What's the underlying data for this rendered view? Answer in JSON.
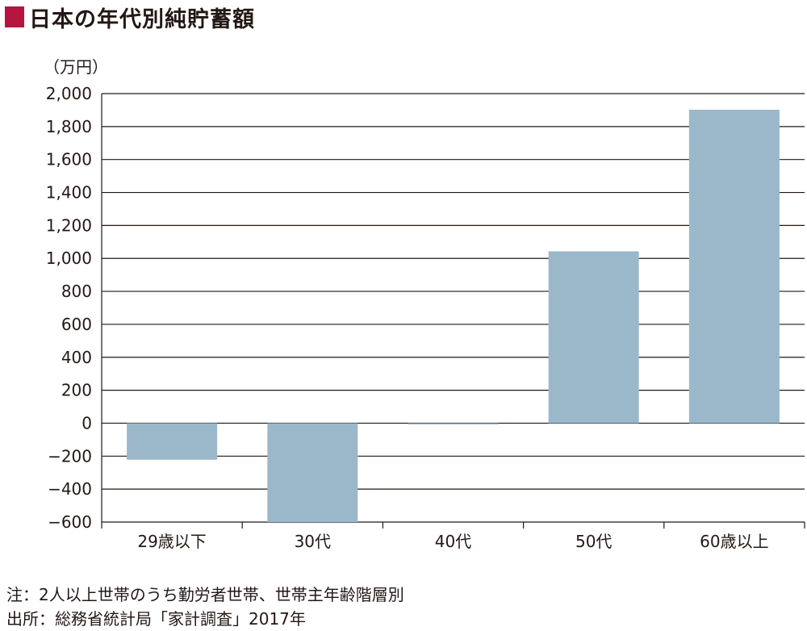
{
  "title": "日本の年代別純貯蓄額",
  "colors": {
    "accent": "#b5153e",
    "bar": "#9bb8cb",
    "grid": "#231815"
  },
  "chart_data": {
    "type": "bar",
    "title": "日本の年代別純貯蓄額",
    "unit_label": "（万円）",
    "categories": [
      "29歳以下",
      "30代",
      "40代",
      "50代",
      "60歳以上"
    ],
    "values": [
      -222,
      -600,
      -6,
      1043,
      1902
    ],
    "ylim": [
      -600,
      2000
    ],
    "yticks": [
      2000,
      1800,
      1600,
      1400,
      1200,
      1000,
      800,
      600,
      400,
      200,
      0,
      -200,
      -400,
      -600
    ],
    "ytick_labels": [
      "2,000",
      "1,800",
      "1,600",
      "1,400",
      "1,200",
      "1,000",
      "800",
      "600",
      "400",
      "200",
      "0",
      "−200",
      "−400",
      "−600"
    ],
    "grid": true,
    "legend": "none"
  },
  "notes": {
    "note": "注：2人以上世帯のうち勤労者世帯、世帯主年齢階層別",
    "source": "出所：総務省統計局「家計調査」2017年"
  }
}
